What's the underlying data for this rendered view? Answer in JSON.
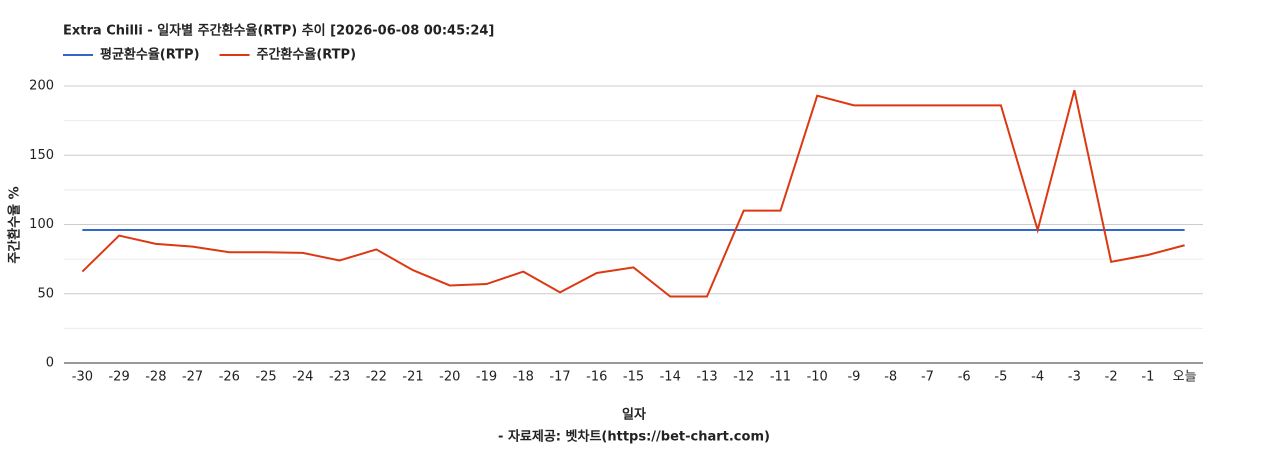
{
  "chart_data": {
    "type": "line",
    "title": "Extra Chilli - 일자별 주간환수율(RTP) 추이 [2026-06-08 00:45:24]",
    "y_label": "주간환수율 %",
    "x_label": "일자",
    "footer": "- 자료제공: 벳차트(https://bet-chart.com)",
    "categories": [
      "-30",
      "-29",
      "-28",
      "-27",
      "-26",
      "-25",
      "-24",
      "-23",
      "-22",
      "-21",
      "-20",
      "-19",
      "-18",
      "-17",
      "-16",
      "-15",
      "-14",
      "-13",
      "-12",
      "-11",
      "-10",
      "-9",
      "-8",
      "-7",
      "-6",
      "-5",
      "-4",
      "-3",
      "-2",
      "-1",
      "오늘"
    ],
    "series": [
      {
        "name": "평균환수율(RTP)",
        "color": "#3366cc",
        "values": [
          96,
          96,
          96,
          96,
          96,
          96,
          96,
          96,
          96,
          96,
          96,
          96,
          96,
          96,
          96,
          96,
          96,
          96,
          96,
          96,
          96,
          96,
          96,
          96,
          96,
          96,
          96,
          96,
          96,
          96,
          96
        ]
      },
      {
        "name": "주간환수율(RTP)",
        "color": "#dc3912",
        "values": [
          66,
          92,
          86,
          84,
          80,
          80,
          79.5,
          74,
          82,
          67,
          56,
          57,
          66,
          51,
          65,
          69,
          48,
          48,
          110,
          110,
          193,
          186,
          186,
          186,
          186,
          186,
          96,
          197,
          73,
          78,
          85
        ]
      }
    ],
    "ylim": [
      0,
      200
    ],
    "yticks": [
      0,
      50,
      100,
      150,
      200
    ],
    "minor_gridlines": [
      25,
      75,
      125,
      175
    ],
    "grid": true
  }
}
